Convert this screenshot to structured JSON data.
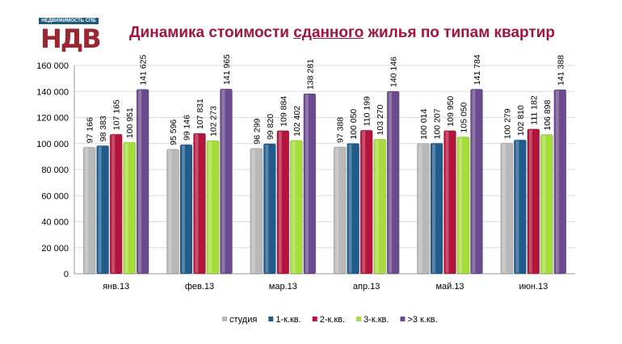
{
  "logo": {
    "band_text": "НЕДВИЖИМОСТЬ СПБ",
    "mark_text": "НДВ"
  },
  "chart_data": {
    "type": "bar",
    "title_parts": [
      "Динамика стоимости ",
      "сданного",
      " жилья по типам квартир"
    ],
    "categories": [
      "янв.13",
      "фев.13",
      "мар.13",
      "апр.13",
      "май.13",
      "июн.13"
    ],
    "series": [
      {
        "name": "студия",
        "color": "#b9b9b9",
        "values": [
          97166,
          95596,
          96299,
          97388,
          100014,
          100279
        ]
      },
      {
        "name": "1-к.кв.",
        "color": "#1f5c8c",
        "values": [
          98383,
          99146,
          99820,
          100050,
          100207,
          102810
        ]
      },
      {
        "name": "2-к.кв.",
        "color": "#b3143c",
        "values": [
          107165,
          107831,
          109884,
          110199,
          109950,
          111182
        ]
      },
      {
        "name": "3-к.кв.",
        "color": "#a6dc3c",
        "values": [
          100951,
          102273,
          102402,
          103270,
          105050,
          106898
        ]
      },
      {
        "name": ">3 к.кв.",
        "color": "#6b4a8e",
        "values": [
          141625,
          141965,
          138281,
          140146,
          141784,
          141388
        ]
      }
    ],
    "ylim": [
      0,
      160000
    ],
    "yticks": [
      "0",
      "20 000",
      "40 000",
      "60 000",
      "80 000",
      "100 000",
      "120 000",
      "140 000",
      "160 000"
    ],
    "grid": true,
    "legend": "bottom",
    "xlabel": "",
    "ylabel": ""
  }
}
